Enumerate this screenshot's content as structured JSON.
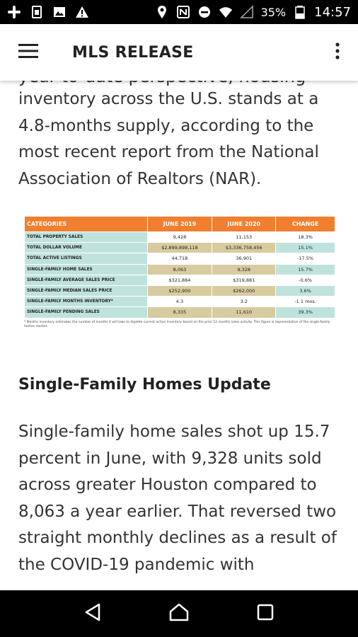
{
  "status_bar": {
    "battery": "35%",
    "time": "14:57"
  },
  "app_bar": {
    "title": "MLS RELEASE"
  },
  "article": {
    "cut_line": "year-to-date perspective, housing",
    "paragraph1": "inventory across the U.S. stands at a 4.8-months supply, according to the most recent report from the National Association of Realtors (NAR).",
    "heading": "Single-Family Homes Update",
    "paragraph2": "Single-family home sales shot up 15.7 percent in June, with 9,328 units sold across greater Houston compared to 8,063 a year earlier. That reversed two straight monthly declines as a result of the COVID-19 pandemic with"
  },
  "table": {
    "headers": [
      "CATEGORIES",
      "JUNE 2019",
      "JUNE 2020",
      "CHANGE"
    ],
    "rows": [
      [
        "TOTAL PROPERTY SALES",
        "9,428",
        "11,153",
        "18.3%"
      ],
      [
        "TOTAL DOLLAR VOLUME",
        "$2,899,898,118",
        "$3,336,758,456",
        "15.1%"
      ],
      [
        "TOTAL ACTIVE LISTINGS",
        "44,718",
        "36,901",
        "-17.5%"
      ],
      [
        "SINGLE-FAMILY HOME SALES",
        "8,063",
        "9,328",
        "15.7%"
      ],
      [
        "SINGLE-FAMILY AVERAGE SALES PRICE",
        "$321,884",
        "$319,881",
        "-0.6%"
      ],
      [
        "SINGLE-FAMILY MEDIAN SALES PRICE",
        "$252,900",
        "$262,000",
        "3.6%"
      ],
      [
        "SINGLE-FAMILY MONTHS INVENTORY*",
        "4.3",
        "3.2",
        "-1.1 mos."
      ],
      [
        "SINGLE-FAMILY PENDING SALES",
        "8,335",
        "11,610",
        "39.3%"
      ]
    ],
    "footnote": "* Months inventory estimates the number of months it will take to deplete current active inventory based on the prior 12 months sales activity. This figure is representative of the single-family homes market."
  },
  "colors": {
    "header_orange": "#f07f2f",
    "row_teal": "#bfe3dc",
    "row_tan": "#d8cba0"
  },
  "icons": {
    "status_left": [
      "slack-icon",
      "sim-icon",
      "image-icon",
      "warning-icon"
    ],
    "status_right": [
      "location-icon",
      "nfc-icon",
      "dnd-icon",
      "wifi-icon",
      "signal-icon",
      "battery-icon"
    ],
    "app_bar": [
      "menu-icon",
      "more-vert-icon"
    ],
    "nav": [
      "back-icon",
      "home-icon",
      "recents-icon"
    ]
  }
}
